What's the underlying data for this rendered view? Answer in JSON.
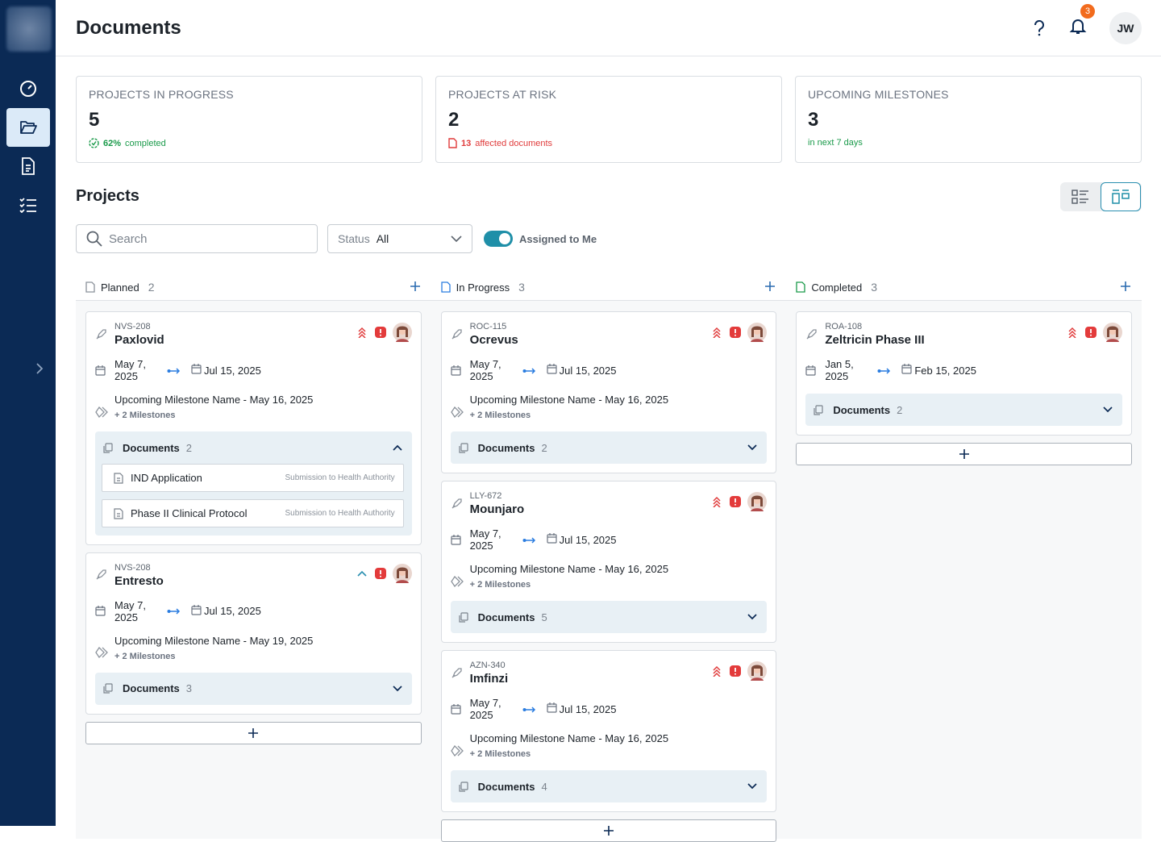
{
  "header": {
    "title": "Documents",
    "notification_count": 3,
    "avatar": "JW"
  },
  "stats": [
    {
      "label": "PROJECTS IN PROGRESS",
      "value": 5,
      "note_value": "62%",
      "note": "completed"
    },
    {
      "label": "PROJECTS AT RISK",
      "value": 2,
      "note_value": "13",
      "note": "affected documents"
    },
    {
      "label": "UPCOMING MILESTONES",
      "value": 3,
      "note": "in next 7 days"
    }
  ],
  "projects": {
    "title": "Projects",
    "search_placeholder": "Search",
    "status_label": "Status",
    "status_value": "All",
    "toggle_label": "Assigned to Me",
    "columns": [
      {
        "name": "Planned",
        "count": 2,
        "cards": [
          {
            "id": "NVS-208",
            "name": "Paxlovid",
            "priority": "high",
            "start": "May 7, 2025",
            "end": "Jul 15, 2025",
            "milestone": "Upcoming Milestone Name - May 16, 2025",
            "more_milestones": "+ 2 Milestones",
            "documents_label": "Documents",
            "documents_count": 2,
            "documents": [
              {
                "name": "IND Application",
                "tag": "Submission to Health Authority"
              },
              {
                "name": "Phase II Clinical Protocol",
                "tag": "Submission to Health Authority"
              }
            ]
          },
          {
            "id": "NVS-208",
            "name": "Entresto",
            "priority": "medium",
            "start": "May 7, 2025",
            "end": "Jul 15, 2025",
            "milestone": "Upcoming Milestone Name - May 19, 2025",
            "more_milestones": "+ 2 Milestones",
            "documents_label": "Documents",
            "documents_count": 3
          }
        ]
      },
      {
        "name": "In Progress",
        "count": 3,
        "cards": [
          {
            "id": "ROC-115",
            "name": "Ocrevus",
            "priority": "high",
            "start": "May 7, 2025",
            "end": "Jul 15, 2025",
            "milestone": "Upcoming Milestone Name - May 16, 2025",
            "more_milestones": "+ 2 Milestones",
            "documents_label": "Documents",
            "documents_count": 2
          },
          {
            "id": "LLY-672",
            "name": "Mounjaro",
            "priority": "high",
            "start": "May 7, 2025",
            "end": "Jul 15, 2025",
            "milestone": "Upcoming Milestone Name - May 16, 2025",
            "more_milestones": "+ 2 Milestones",
            "documents_label": "Documents",
            "documents_count": 5
          },
          {
            "id": "AZN-340",
            "name": "Imfinzi",
            "priority": "high",
            "start": "May 7, 2025",
            "end": "Jul 15, 2025",
            "milestone": "Upcoming Milestone Name - May 16, 2025",
            "more_milestones": "+ 2 Milestones",
            "documents_label": "Documents",
            "documents_count": 4
          }
        ]
      },
      {
        "name": "Completed",
        "count": 3,
        "cards": [
          {
            "id": "ROA-108",
            "name": "Zeltricin Phase III",
            "priority": "high",
            "start": "Jan 5, 2025",
            "end": "Feb 15, 2025",
            "documents_label": "Documents",
            "documents_count": 2
          }
        ]
      }
    ]
  }
}
